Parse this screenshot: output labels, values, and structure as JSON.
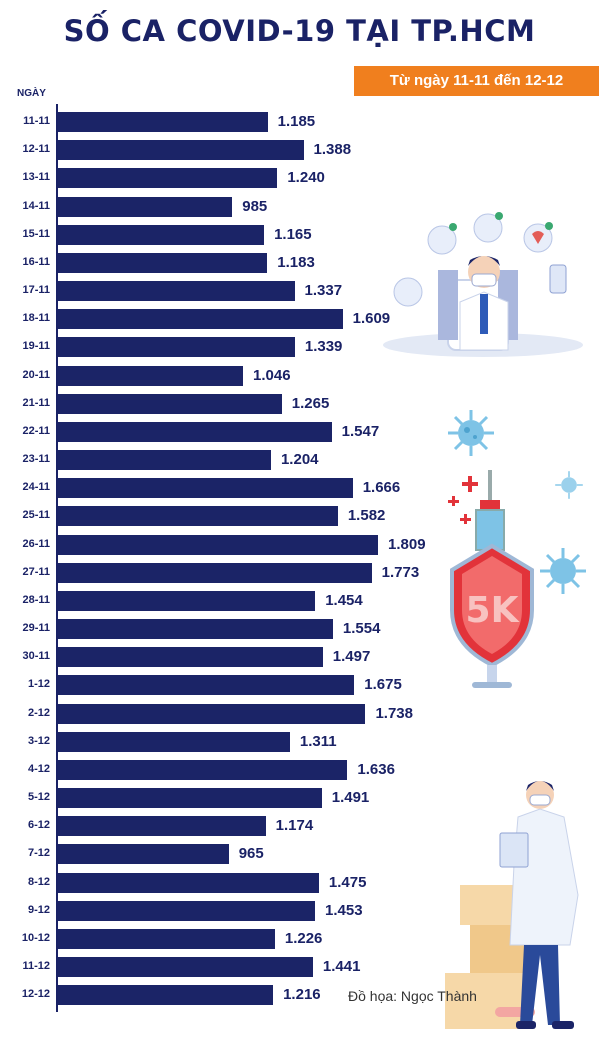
{
  "chart_data": {
    "type": "bar",
    "orientation": "horizontal",
    "title": "SỐ CA COVID-19 TẠI TP.HCM",
    "subtitle": "Từ ngày 11-11 đến 12-12",
    "ylabel": "NGÀY",
    "xlim": [
      0,
      1809
    ],
    "grid": false,
    "categories": [
      "11-11",
      "12-11",
      "13-11",
      "14-11",
      "15-11",
      "16-11",
      "17-11",
      "18-11",
      "19-11",
      "20-11",
      "21-11",
      "22-11",
      "23-11",
      "24-11",
      "25-11",
      "26-11",
      "27-11",
      "28-11",
      "29-11",
      "30-11",
      "1-12",
      "2-12",
      "3-12",
      "4-12",
      "5-12",
      "6-12",
      "7-12",
      "8-12",
      "9-12",
      "10-12",
      "11-12",
      "12-12"
    ],
    "values": [
      1185,
      1388,
      1240,
      985,
      1165,
      1183,
      1337,
      1609,
      1339,
      1046,
      1265,
      1547,
      1204,
      1666,
      1582,
      1809,
      1773,
      1454,
      1554,
      1497,
      1675,
      1738,
      1311,
      1636,
      1491,
      1174,
      965,
      1475,
      1453,
      1226,
      1441,
      1216
    ],
    "value_labels": [
      "1.185",
      "1.388",
      "1.240",
      "985",
      "1.165",
      "1.183",
      "1.337",
      "1.609",
      "1.339",
      "1.046",
      "1.265",
      "1.547",
      "1.204",
      "1.666",
      "1.582",
      "1.809",
      "1.773",
      "1.454",
      "1.554",
      "1.497",
      "1.675",
      "1.738",
      "1.311",
      "1.636",
      "1.491",
      "1.174",
      "965",
      "1.475",
      "1.453",
      "1.226",
      "1.441",
      "1.216"
    ],
    "bar_color": "#1b2467"
  },
  "credit": "Đồ họa: Ngọc Thành",
  "illustrations": {
    "top": "doctor-with-patients-icon",
    "middle": "vaccine-syringe-5k-icon",
    "virus": "virus-icon",
    "bottom": "doctor-with-clipboard-icon",
    "shield_text": "5K"
  }
}
